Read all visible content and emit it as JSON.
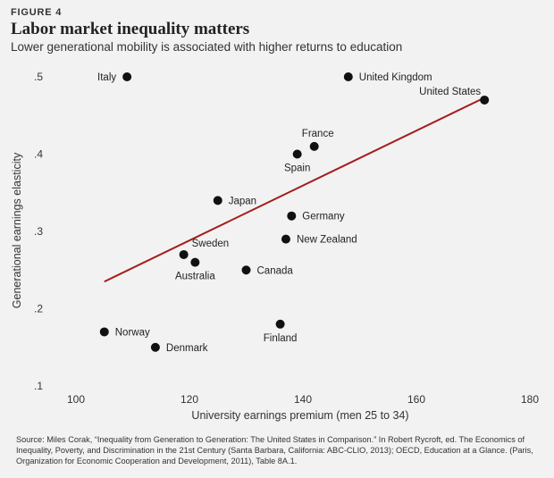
{
  "figure_label": "FIGURE 4",
  "title": "Labor market inequality matters",
  "subtitle": "Lower generational mobility is associated with higher returns to education",
  "source": "Source: Miles Corak, “Inequality from Generation to Generation: The United States in Comparison.” In Robert Rycroft, ed. The Economics of Inequality, Poverty, and Discrimination in the 21st Century (Santa Barbara, California: ABC-CLIO, 2013); OECD, Education at a Glance. (Paris, Organization for Economic Cooperation and Development, 2011), Table 8A.1.",
  "colors": {
    "point": "#111111",
    "trend": "#a51c1c",
    "background": "#f2f2f2"
  },
  "chart_data": {
    "type": "scatter",
    "xlabel": "University earnings premium (men 25 to 34)",
    "ylabel": "Generational earnings elasticity",
    "xlim": [
      100,
      180
    ],
    "ylim": [
      0.1,
      0.5
    ],
    "xticks": [
      100,
      120,
      140,
      160,
      180
    ],
    "yticks": [
      0.1,
      0.2,
      0.3,
      0.4,
      0.5
    ],
    "ytick_labels": [
      ".1",
      ".2",
      ".3",
      ".4",
      ".5"
    ],
    "grid": false,
    "points": [
      {
        "label": "Italy",
        "x": 109,
        "y": 0.5,
        "label_pos": "left"
      },
      {
        "label": "United Kingdom",
        "x": 148,
        "y": 0.5,
        "label_pos": "right"
      },
      {
        "label": "United States",
        "x": 172,
        "y": 0.47,
        "label_pos": "above-left"
      },
      {
        "label": "France",
        "x": 142,
        "y": 0.41,
        "label_pos": "above"
      },
      {
        "label": "Spain",
        "x": 139,
        "y": 0.4,
        "label_pos": "below"
      },
      {
        "label": "Japan",
        "x": 125,
        "y": 0.34,
        "label_pos": "right"
      },
      {
        "label": "Germany",
        "x": 138,
        "y": 0.32,
        "label_pos": "right"
      },
      {
        "label": "New Zealand",
        "x": 137,
        "y": 0.29,
        "label_pos": "right"
      },
      {
        "label": "Sweden",
        "x": 119,
        "y": 0.27,
        "label_pos": "above-right"
      },
      {
        "label": "Australia",
        "x": 121,
        "y": 0.26,
        "label_pos": "below"
      },
      {
        "label": "Canada",
        "x": 130,
        "y": 0.25,
        "label_pos": "right"
      },
      {
        "label": "Finland",
        "x": 136,
        "y": 0.18,
        "label_pos": "below"
      },
      {
        "label": "Norway",
        "x": 105,
        "y": 0.17,
        "label_pos": "right"
      },
      {
        "label": "Denmark",
        "x": 114,
        "y": 0.15,
        "label_pos": "right"
      }
    ],
    "trendline": {
      "x": [
        105,
        172
      ],
      "y": [
        0.235,
        0.473
      ]
    }
  }
}
